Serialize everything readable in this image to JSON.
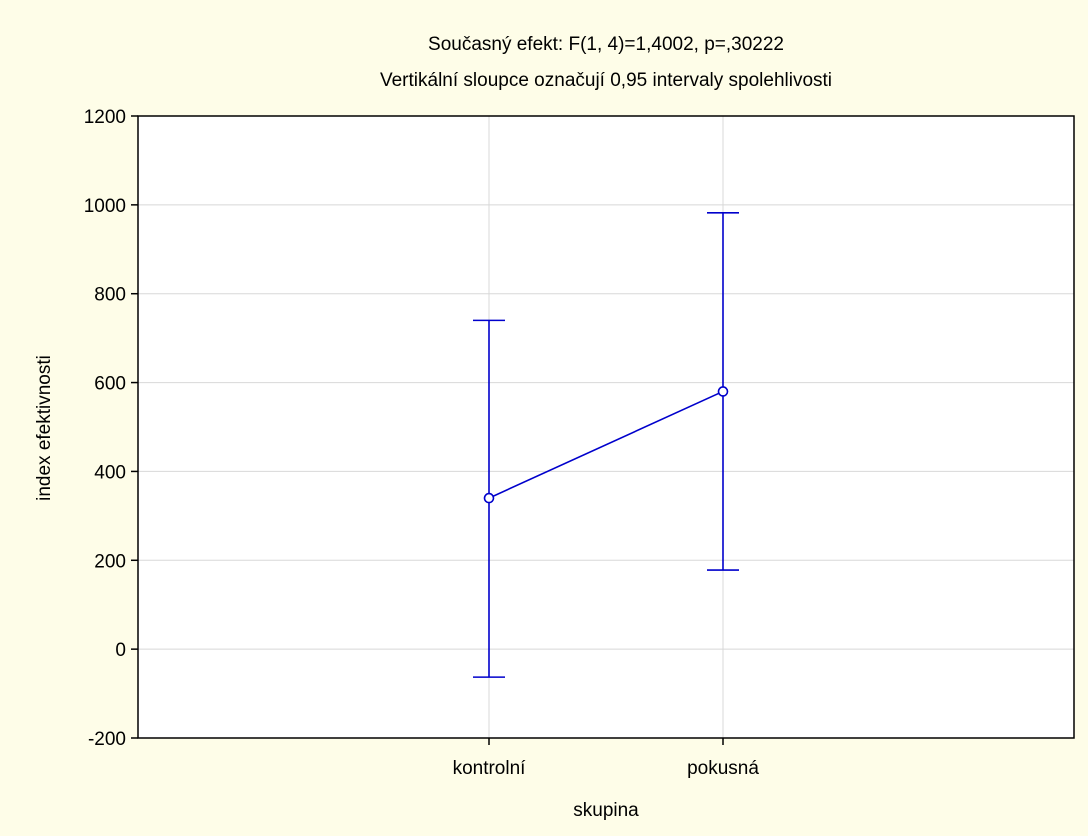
{
  "chart_data": {
    "type": "line",
    "title": "Současný efekt: F(1, 4)=1,4002, p=,30222",
    "subtitle": "Vertikální sloupce označují 0,95 intervaly spolehlivosti",
    "xlabel": "skupina",
    "ylabel": "index efektivnosti",
    "categories": [
      "kontrolní",
      "pokusná"
    ],
    "series": [
      {
        "values": [
          340,
          580
        ],
        "ci_lower": [
          -63,
          178
        ],
        "ci_upper": [
          740,
          982
        ],
        "color": "#0000cc"
      }
    ],
    "ylim": [
      -200,
      1200
    ],
    "yticks": [
      -200,
      0,
      200,
      400,
      600,
      800,
      1000,
      1200
    ],
    "ytick_labels": [
      "-200",
      "0",
      "200",
      "400",
      "600",
      "800",
      "1000",
      "1200"
    ],
    "grid": true,
    "plot_background": "#ffffff",
    "page_background": "#fefde8"
  }
}
